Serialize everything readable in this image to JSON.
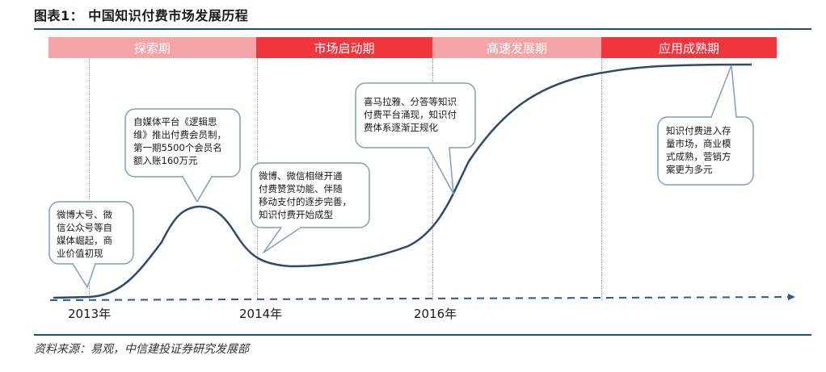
{
  "title": "图表1：  中国知识付费市场发展历程",
  "stages": [
    {
      "label": "探索期",
      "tone": "light"
    },
    {
      "label": "市场启动期",
      "tone": "dark"
    },
    {
      "label": "高速发展期",
      "tone": "light"
    },
    {
      "label": "应用成熟期",
      "tone": "dark"
    }
  ],
  "years": [
    "2013年",
    "2014年",
    "2016年"
  ],
  "callouts": [
    {
      "text": "微博大号、微\n信公众号等自\n媒体崛起，商\n业价值初现"
    },
    {
      "text": "自媒体平台《逻辑思\n维》推出付费会员制，\n第一期5500个会员名\n额入账160万元"
    },
    {
      "text": "微博、微信相继开通\n付费赞赏功能、伴随\n移动支付的逐步完善，\n知识付费开始成型"
    },
    {
      "text": "喜马拉雅、分答等知识\n付费平台涌现，知识付\n费体系逐渐正规化"
    },
    {
      "text": "知识付费进入存\n量市场，商业模\n式成熟，营销方\n案更为多元"
    }
  ],
  "colors": {
    "curve": "#2e4a6b",
    "callout_border": "#7f9fbf",
    "stage_light": "#f4a3a6",
    "stage_dark": "#f0353d",
    "axis": "#2e5a8a"
  },
  "source": "资料来源：易观，中信建投证券研究发展部"
}
